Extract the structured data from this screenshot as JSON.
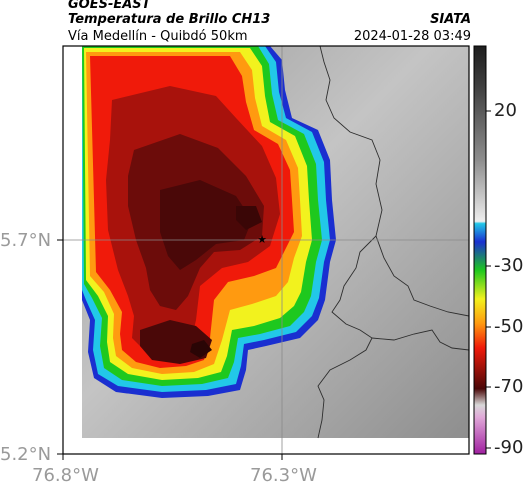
{
  "header": {
    "satellite": "GOES-EAST",
    "product": "Temperatura de Brillo CH13",
    "route": "Vía Medellín - Quibdó 50km",
    "agency": "SIATA",
    "datetime": "2024-01-28 03:49"
  },
  "map": {
    "lat_labels": [
      "5.7°N",
      "5.2°N"
    ],
    "lon_labels": [
      "76.8°W",
      "76.3°W"
    ],
    "gridline_color": "#8a8a8a",
    "marker_symbol": "★"
  },
  "colorbar": {
    "tick_labels": [
      "20",
      "-30",
      "-50",
      "-70",
      "-90"
    ],
    "colors": {
      "warm_gray_top": "#2a2a2a",
      "warm_gray_bottom": "#f2f2f2",
      "cyan": "#22c8e8",
      "blue": "#1a2fd0",
      "green": "#1ec81e",
      "yellow": "#f2f21e",
      "orange": "#ff9a10",
      "red": "#f01a0a",
      "dark_red": "#4a0808",
      "magenta": "#c030b0"
    }
  }
}
